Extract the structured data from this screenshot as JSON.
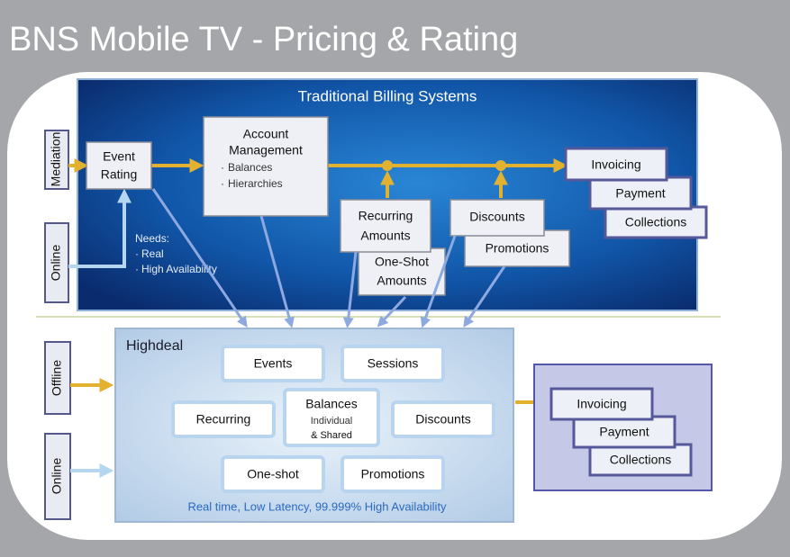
{
  "title": "BNS Mobile TV - Pricing & Rating",
  "billing": {
    "title": "Traditional Billing Systems",
    "side_labels": [
      "Mediation",
      "Online"
    ],
    "event_rating": [
      "Event",
      "Rating"
    ],
    "account_management": {
      "label": [
        "Account",
        "Management"
      ],
      "items": [
        "Balances",
        "Hierarchies"
      ]
    },
    "recurring_amounts": [
      "Recurring",
      "Amounts"
    ],
    "one_shot_amounts": [
      "One-Shot",
      "Amounts"
    ],
    "discounts": "Discounts",
    "promotions": "Promotions",
    "invoicing": [
      "Invoicing",
      "Payment",
      "Collections"
    ],
    "needs": {
      "label": "Needs:",
      "items": [
        "Real",
        "High Availability"
      ]
    }
  },
  "highdeal": {
    "title": "Highdeal",
    "side_labels": [
      "Offline",
      "Online"
    ],
    "events": "Events",
    "sessions": "Sessions",
    "recurring": "Recurring",
    "balances": {
      "label": "Balances",
      "sub": [
        "Individual",
        "& Shared"
      ]
    },
    "discounts": "Discounts",
    "one_shot": "One-shot",
    "promotions": "Promotions",
    "footer": "Real time, Low Latency, 99.999% High Availability",
    "invoicing": [
      "Invoicing",
      "Payment",
      "Collections"
    ]
  }
}
